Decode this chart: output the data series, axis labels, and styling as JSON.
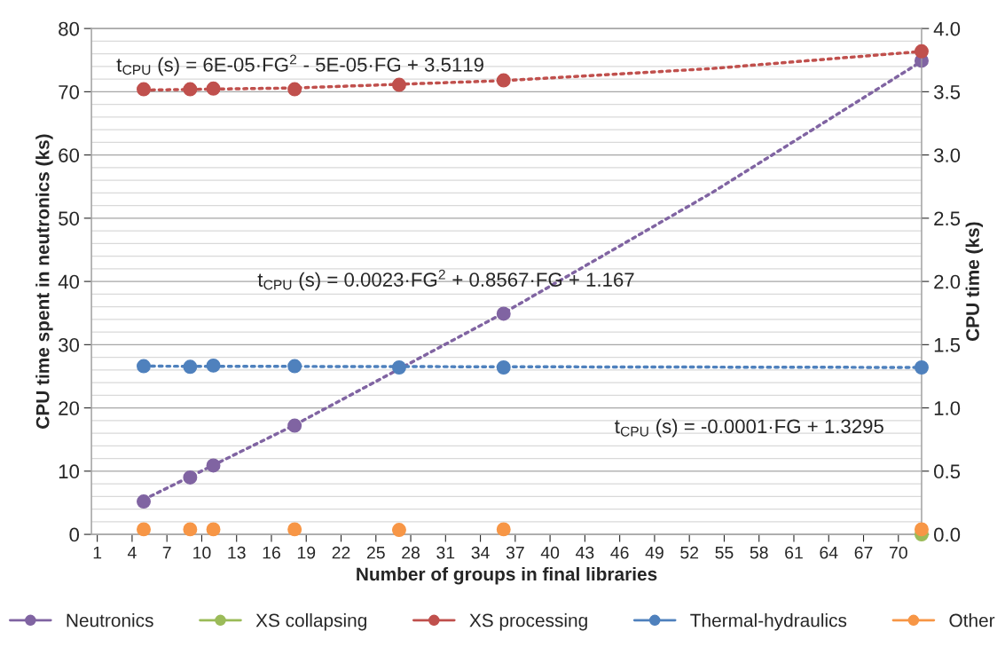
{
  "chart_data": {
    "type": "scatter",
    "xlabel": "Number of groups in final libraries",
    "ylabel": "CPU time spent in neutronics (ks)",
    "y2label": "CPU time (ks)",
    "x": [
      5,
      9,
      11,
      18,
      27,
      36,
      72
    ],
    "xlim": [
      0.5,
      72
    ],
    "xticks": [
      1,
      4,
      7,
      10,
      13,
      16,
      19,
      22,
      25,
      28,
      31,
      34,
      37,
      40,
      43,
      46,
      49,
      52,
      55,
      58,
      61,
      64,
      67,
      70
    ],
    "ylim": [
      0,
      80
    ],
    "yticks": [
      0,
      10,
      20,
      30,
      40,
      50,
      60,
      70,
      80
    ],
    "y2lim": [
      0,
      4
    ],
    "y2ticks": [
      {
        "value": 0,
        "label": "0.0"
      },
      {
        "value": 0.5,
        "label": "0.5"
      },
      {
        "value": 1,
        "label": "1.0"
      },
      {
        "value": 1.5,
        "label": "1.5"
      },
      {
        "value": 2,
        "label": "2.0"
      },
      {
        "value": 2.5,
        "label": "2.5"
      },
      {
        "value": 3,
        "label": "3.0"
      },
      {
        "value": 3.5,
        "label": "3.5"
      },
      {
        "value": 4,
        "label": "4.0"
      }
    ],
    "grid": "y",
    "legend": "bottom",
    "marker": "circle",
    "series": [
      {
        "name": "Neutronics",
        "color": "#8064a2",
        "values": [
          5.2,
          9.0,
          10.9,
          17.2,
          null,
          34.9,
          74.9
        ]
      },
      {
        "name": "XS collapsing",
        "color": "#9bbb59",
        "axis": "y2",
        "values": [
          null,
          null,
          null,
          null,
          null,
          null,
          0.0
        ]
      },
      {
        "name": "XS processing",
        "color": "#c0504d",
        "axis": "y2",
        "values": [
          3.52,
          3.52,
          3.525,
          3.52,
          3.555,
          3.59,
          3.82
        ]
      },
      {
        "name": "Thermal-hydraulics",
        "color": "#4f81bd",
        "axis": "y2",
        "values": [
          1.33,
          1.325,
          1.335,
          1.33,
          1.32,
          1.32,
          1.32
        ]
      },
      {
        "name": "Other",
        "color": "#f79646",
        "axis": "y2",
        "values": [
          0.04,
          0.04,
          0.04,
          0.04,
          0.035,
          0.04,
          0.04
        ]
      },
      {
        "type": "line",
        "color": "#8064a2",
        "marker": "none",
        "line_style": "dotted",
        "x": [
          5,
          18,
          36,
          54,
          72
        ],
        "values": [
          5.5,
          17.3,
          35.0,
          54.1,
          74.8
        ]
      },
      {
        "type": "line",
        "color": "#c0504d",
        "axis": "y2",
        "marker": "none",
        "line_style": "dotted",
        "x": [
          5,
          18,
          36,
          54,
          72
        ],
        "values": [
          3.513,
          3.53,
          3.588,
          3.684,
          3.819
        ]
      },
      {
        "type": "line",
        "color": "#4f81bd",
        "axis": "y2",
        "marker": "none",
        "line_style": "dotted",
        "x": [
          5,
          72
        ],
        "values": [
          1.33,
          1.32
        ]
      }
    ],
    "annotations": [
      "t$_{CPU}$ (s) = 6E-05·FG$^{2}$ - 5E-05·FG + 3.5119",
      "t$_{CPU}$ (s) = 0.0023·FG$^{2}$ + 0.8567·FG + 1.167",
      "t$_{CPU}$ (s) = -0.0001·FG + 1.3295"
    ]
  }
}
